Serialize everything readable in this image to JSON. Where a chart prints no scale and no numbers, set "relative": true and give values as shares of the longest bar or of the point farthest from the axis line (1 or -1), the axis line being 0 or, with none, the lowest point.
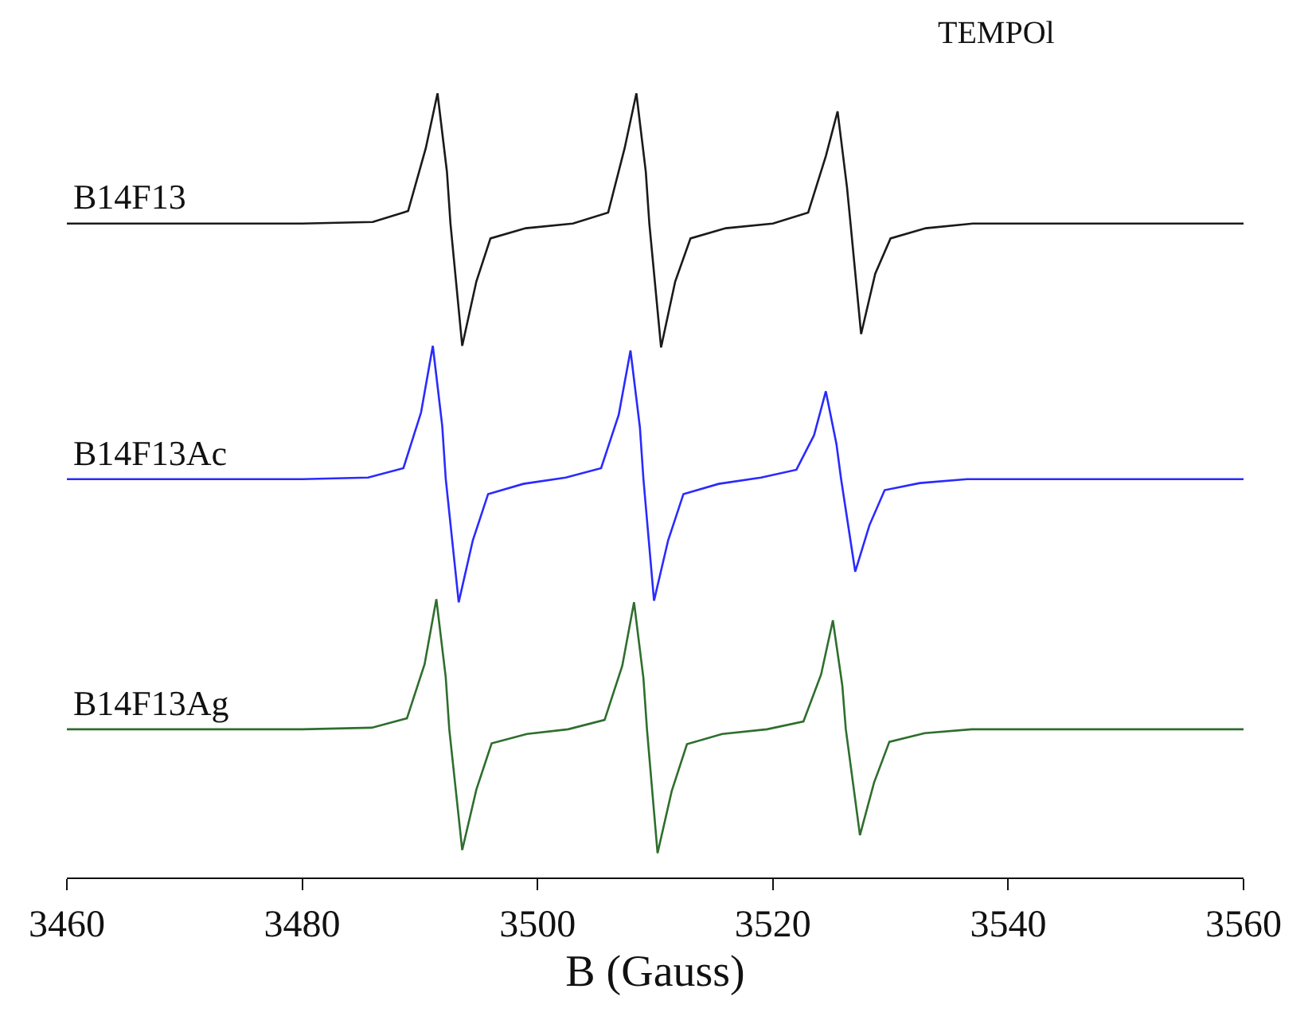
{
  "chart_data": {
    "type": "line",
    "relative": true,
    "xlabel": "B (Gauss)",
    "xlim": [
      3460,
      3560
    ],
    "xticks": [
      3460,
      3480,
      3500,
      3520,
      3540,
      3560
    ],
    "annotations": [
      "TEMPOl"
    ],
    "grid": false,
    "legend": false,
    "series": [
      {
        "name": "B14F13",
        "color": "#1a1a1a",
        "x": [
          3460,
          3480,
          3486,
          3489,
          3490.5,
          3491.5,
          3492.3,
          3492.6,
          3493.6,
          3494.8,
          3496,
          3499,
          3503,
          3506,
          3507.4,
          3508.4,
          3509.2,
          3509.5,
          3510.5,
          3511.7,
          3513,
          3516,
          3520,
          3523,
          3524.5,
          3525.5,
          3526.3,
          3526.6,
          3527.5,
          3528.7,
          3530,
          3533,
          3537,
          3560
        ],
        "values": [
          0.834,
          0.834,
          0.836,
          0.85,
          0.93,
          1.0,
          0.9,
          0.834,
          0.678,
          0.76,
          0.815,
          0.828,
          0.834,
          0.848,
          0.93,
          1.0,
          0.9,
          0.834,
          0.676,
          0.76,
          0.815,
          0.828,
          0.834,
          0.848,
          0.92,
          0.977,
          0.88,
          0.834,
          0.693,
          0.77,
          0.815,
          0.828,
          0.834,
          0.834
        ]
      },
      {
        "name": "B14F13Ac",
        "color": "#2a2aff",
        "x": [
          3460,
          3480,
          3485.6,
          3488.6,
          3490.1,
          3491.1,
          3491.9,
          3492.2,
          3493.3,
          3494.5,
          3495.8,
          3498.8,
          3502.4,
          3505.4,
          3506.9,
          3507.9,
          3508.7,
          3509.0,
          3509.9,
          3511.1,
          3512.4,
          3515.4,
          3519,
          3522,
          3523.5,
          3524.5,
          3525.4,
          3525.8,
          3527,
          3528.2,
          3529.5,
          3532.5,
          3536.5,
          3560
        ],
        "values": [
          0.508,
          0.508,
          0.51,
          0.522,
          0.593,
          0.678,
          0.576,
          0.508,
          0.351,
          0.43,
          0.489,
          0.502,
          0.51,
          0.522,
          0.59,
          0.672,
          0.574,
          0.508,
          0.353,
          0.43,
          0.489,
          0.502,
          0.51,
          0.52,
          0.564,
          0.62,
          0.553,
          0.508,
          0.39,
          0.449,
          0.494,
          0.503,
          0.508,
          0.508
        ]
      },
      {
        "name": "B14F13Ag",
        "color": "#2e6e2e",
        "x": [
          3460,
          3480,
          3485.9,
          3488.9,
          3490.4,
          3491.4,
          3492.2,
          3492.5,
          3493.6,
          3494.8,
          3496.1,
          3499.1,
          3502.6,
          3505.7,
          3507.2,
          3508.2,
          3509.0,
          3509.3,
          3510.2,
          3511.4,
          3512.7,
          3515.7,
          3519.5,
          3522.6,
          3524.1,
          3525.1,
          3525.9,
          3526.2,
          3527.4,
          3528.6,
          3529.9,
          3532.9,
          3536.9,
          3560
        ],
        "values": [
          0.189,
          0.189,
          0.191,
          0.203,
          0.272,
          0.355,
          0.255,
          0.189,
          0.035,
          0.112,
          0.171,
          0.183,
          0.189,
          0.201,
          0.27,
          0.351,
          0.254,
          0.189,
          0.031,
          0.11,
          0.17,
          0.183,
          0.189,
          0.199,
          0.259,
          0.328,
          0.245,
          0.189,
          0.054,
          0.121,
          0.173,
          0.184,
          0.189,
          0.189
        ]
      }
    ]
  }
}
